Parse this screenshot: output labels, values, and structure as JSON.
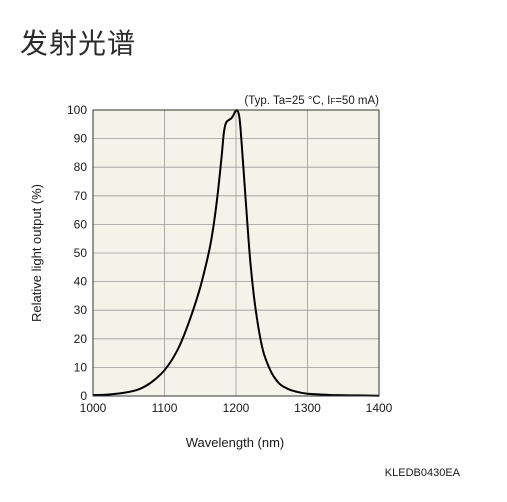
{
  "page": {
    "title": "发射光谱",
    "figure_code": "KLEDB0430EA"
  },
  "chart_data": {
    "type": "line",
    "title": "",
    "xlabel": "Wavelength (nm)",
    "ylabel": "Relative light output (%)",
    "xlim": [
      1000,
      1400
    ],
    "ylim": [
      0,
      100
    ],
    "x_ticks": [
      1000,
      1100,
      1200,
      1300,
      1400
    ],
    "y_ticks": [
      0,
      10,
      20,
      30,
      40,
      50,
      60,
      70,
      80,
      90,
      100
    ],
    "grid": true,
    "annotation": {
      "prefix": "(Typ. Ta=25 °C, I",
      "subscript": "F",
      "suffix": "=50 mA)"
    },
    "colors": {
      "plot_background": "#f4f3ea",
      "grid": "#9a9a9a",
      "line": "#000000"
    },
    "series": [
      {
        "values": [
          [
            1000,
            0.3
          ],
          [
            1020,
            0.5
          ],
          [
            1040,
            1.0
          ],
          [
            1060,
            2.0
          ],
          [
            1070,
            3.0
          ],
          [
            1080,
            4.5
          ],
          [
            1090,
            6.5
          ],
          [
            1100,
            9.0
          ],
          [
            1110,
            12.5
          ],
          [
            1120,
            17.0
          ],
          [
            1130,
            23.0
          ],
          [
            1140,
            30.0
          ],
          [
            1150,
            38.0
          ],
          [
            1160,
            48.0
          ],
          [
            1165,
            54.0
          ],
          [
            1170,
            62.0
          ],
          [
            1175,
            72.0
          ],
          [
            1180,
            84.0
          ],
          [
            1183,
            92.0
          ],
          [
            1186,
            95.5
          ],
          [
            1190,
            96.5
          ],
          [
            1193,
            97.0
          ],
          [
            1196,
            98.0
          ],
          [
            1199,
            99.5
          ],
          [
            1202,
            99.8
          ],
          [
            1205,
            97.0
          ],
          [
            1208,
            88.0
          ],
          [
            1212,
            74.0
          ],
          [
            1216,
            60.0
          ],
          [
            1220,
            47.0
          ],
          [
            1225,
            35.0
          ],
          [
            1230,
            26.0
          ],
          [
            1235,
            19.0
          ],
          [
            1240,
            14.0
          ],
          [
            1250,
            8.0
          ],
          [
            1260,
            4.5
          ],
          [
            1270,
            2.8
          ],
          [
            1280,
            1.8
          ],
          [
            1290,
            1.2
          ],
          [
            1300,
            0.8
          ],
          [
            1320,
            0.5
          ],
          [
            1340,
            0.3
          ],
          [
            1370,
            0.2
          ],
          [
            1400,
            0.1
          ]
        ]
      }
    ]
  }
}
